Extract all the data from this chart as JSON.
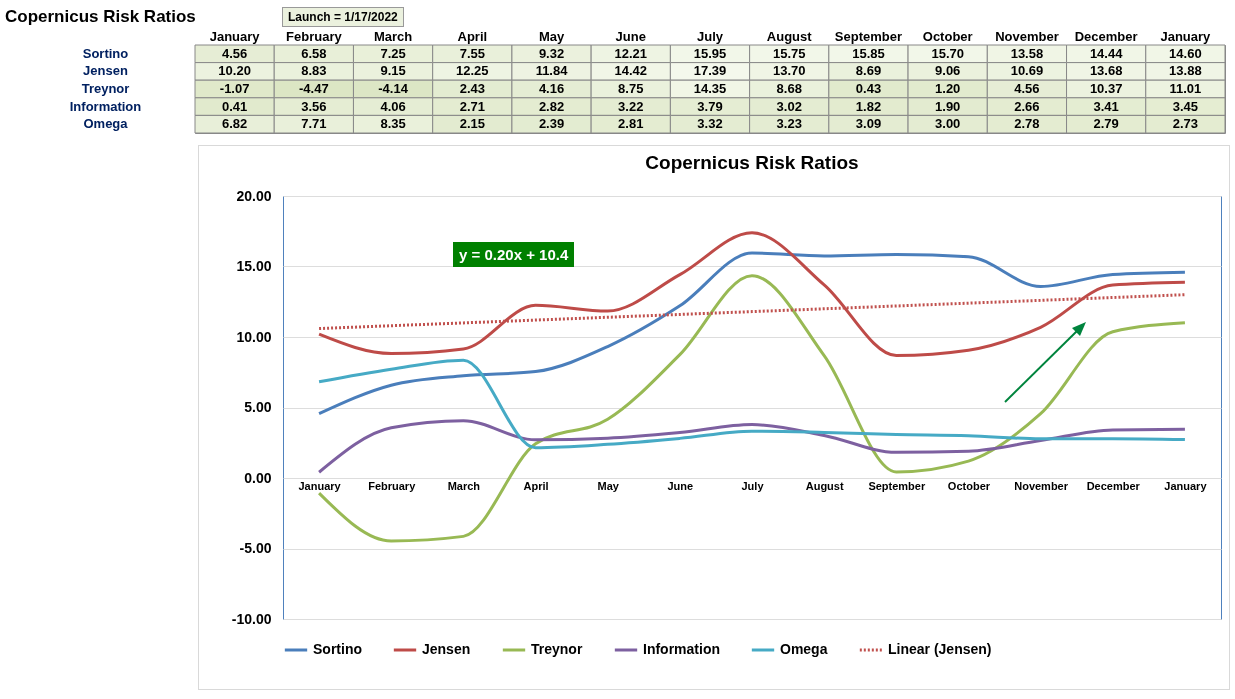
{
  "chart_data": [
    {
      "type": "heatmap",
      "title": "Copernicus Risk Ratios",
      "categories": [
        "January",
        "February",
        "March",
        "April",
        "May",
        "June",
        "July",
        "August",
        "September",
        "October",
        "November",
        "December",
        "January"
      ],
      "y_categories": [
        "Sortino",
        "Jensen",
        "Treynor",
        "Information",
        "Omega"
      ],
      "cells": [
        [
          4.56,
          6.58,
          7.25,
          7.55,
          9.32,
          12.21,
          15.95,
          15.75,
          15.85,
          15.7,
          13.58,
          14.44,
          14.6
        ],
        [
          10.2,
          8.83,
          9.15,
          12.25,
          11.84,
          14.42,
          17.39,
          13.7,
          8.69,
          9.06,
          10.69,
          13.68,
          13.88
        ],
        [
          -1.07,
          -4.47,
          -4.14,
          2.43,
          4.16,
          8.75,
          14.35,
          8.68,
          0.43,
          1.2,
          4.56,
          10.37,
          11.01
        ],
        [
          0.41,
          3.56,
          4.06,
          2.71,
          2.82,
          3.22,
          3.79,
          3.02,
          1.82,
          1.9,
          2.66,
          3.41,
          3.45
        ],
        [
          6.82,
          7.71,
          8.35,
          2.15,
          2.39,
          2.81,
          3.32,
          3.23,
          3.09,
          3.0,
          2.78,
          2.79,
          2.73
        ]
      ],
      "cell_labels": [
        [
          "4.56",
          "6.58",
          "7.25",
          "7.55",
          "9.32",
          "12.21",
          "15.95",
          "15.75",
          "15.85",
          "15.70",
          "13.58",
          "14.44",
          "14.60"
        ],
        [
          "10.20",
          "8.83",
          "9.15",
          "12.25",
          "11.84",
          "14.42",
          "17.39",
          "13.70",
          "8.69",
          "9.06",
          "10.69",
          "13.68",
          "13.88"
        ],
        [
          "-1.07",
          "-4.47",
          "-4.14",
          "2.43",
          "4.16",
          "8.75",
          "14.35",
          "8.68",
          "0.43",
          "1.20",
          "4.56",
          "10.37",
          "11.01"
        ],
        [
          "0.41",
          "3.56",
          "4.06",
          "2.71",
          "2.82",
          "3.22",
          "3.79",
          "3.02",
          "1.82",
          "1.90",
          "2.66",
          "3.41",
          "3.45"
        ],
        [
          "6.82",
          "7.71",
          "8.35",
          "2.15",
          "2.39",
          "2.81",
          "3.32",
          "3.23",
          "3.09",
          "3.00",
          "2.78",
          "2.79",
          "2.73"
        ]
      ],
      "annotations": [
        "Launch = 1/17/2022"
      ]
    },
    {
      "type": "line",
      "title": "Copernicus Risk Ratios",
      "categories": [
        "January",
        "February",
        "March",
        "April",
        "May",
        "June",
        "July",
        "August",
        "September",
        "October",
        "November",
        "December",
        "January"
      ],
      "series": [
        {
          "name": "Sortino",
          "color": "#4a7ebb",
          "values": [
            4.56,
            6.58,
            7.25,
            7.55,
            9.32,
            12.21,
            15.95,
            15.75,
            15.85,
            15.7,
            13.58,
            14.44,
            14.6
          ]
        },
        {
          "name": "Jensen",
          "color": "#be4b48",
          "values": [
            10.2,
            8.83,
            9.15,
            12.25,
            11.84,
            14.42,
            17.39,
            13.7,
            8.69,
            9.06,
            10.69,
            13.68,
            13.88
          ]
        },
        {
          "name": "Treynor",
          "color": "#98b954",
          "values": [
            -1.07,
            -4.47,
            -4.14,
            2.43,
            4.16,
            8.75,
            14.35,
            8.68,
            0.43,
            1.2,
            4.56,
            10.37,
            11.01
          ]
        },
        {
          "name": "Information",
          "color": "#7d60a0",
          "values": [
            0.41,
            3.56,
            4.06,
            2.71,
            2.82,
            3.22,
            3.79,
            3.02,
            1.82,
            1.9,
            2.66,
            3.41,
            3.45
          ]
        },
        {
          "name": "Omega",
          "color": "#46aac5",
          "values": [
            6.82,
            7.71,
            8.35,
            2.15,
            2.39,
            2.81,
            3.32,
            3.23,
            3.09,
            3.0,
            2.78,
            2.79,
            2.73
          ]
        },
        {
          "name": "Linear (Jensen)",
          "color": "#c0504d",
          "line_style": "dotted",
          "values": [
            10.6,
            10.8,
            11.0,
            11.2,
            11.4,
            11.6,
            11.8,
            12.0,
            12.2,
            12.4,
            12.6,
            12.8,
            13.0
          ]
        }
      ],
      "ylim": [
        -10,
        20
      ],
      "yticks": [
        {
          "value": -10,
          "label": "-10.00"
        },
        {
          "value": -5,
          "label": "-5.00"
        },
        {
          "value": 0,
          "label": "0.00"
        },
        {
          "value": 5,
          "label": "5.00"
        },
        {
          "value": 10,
          "label": "10.00"
        },
        {
          "value": 15,
          "label": "15.00"
        },
        {
          "value": 20,
          "label": "20.00"
        }
      ],
      "grid": "y",
      "legend": "bottom",
      "line_style": "solid",
      "marker": "none",
      "annotations": [
        "y = 0.20x + 10.4"
      ]
    }
  ]
}
